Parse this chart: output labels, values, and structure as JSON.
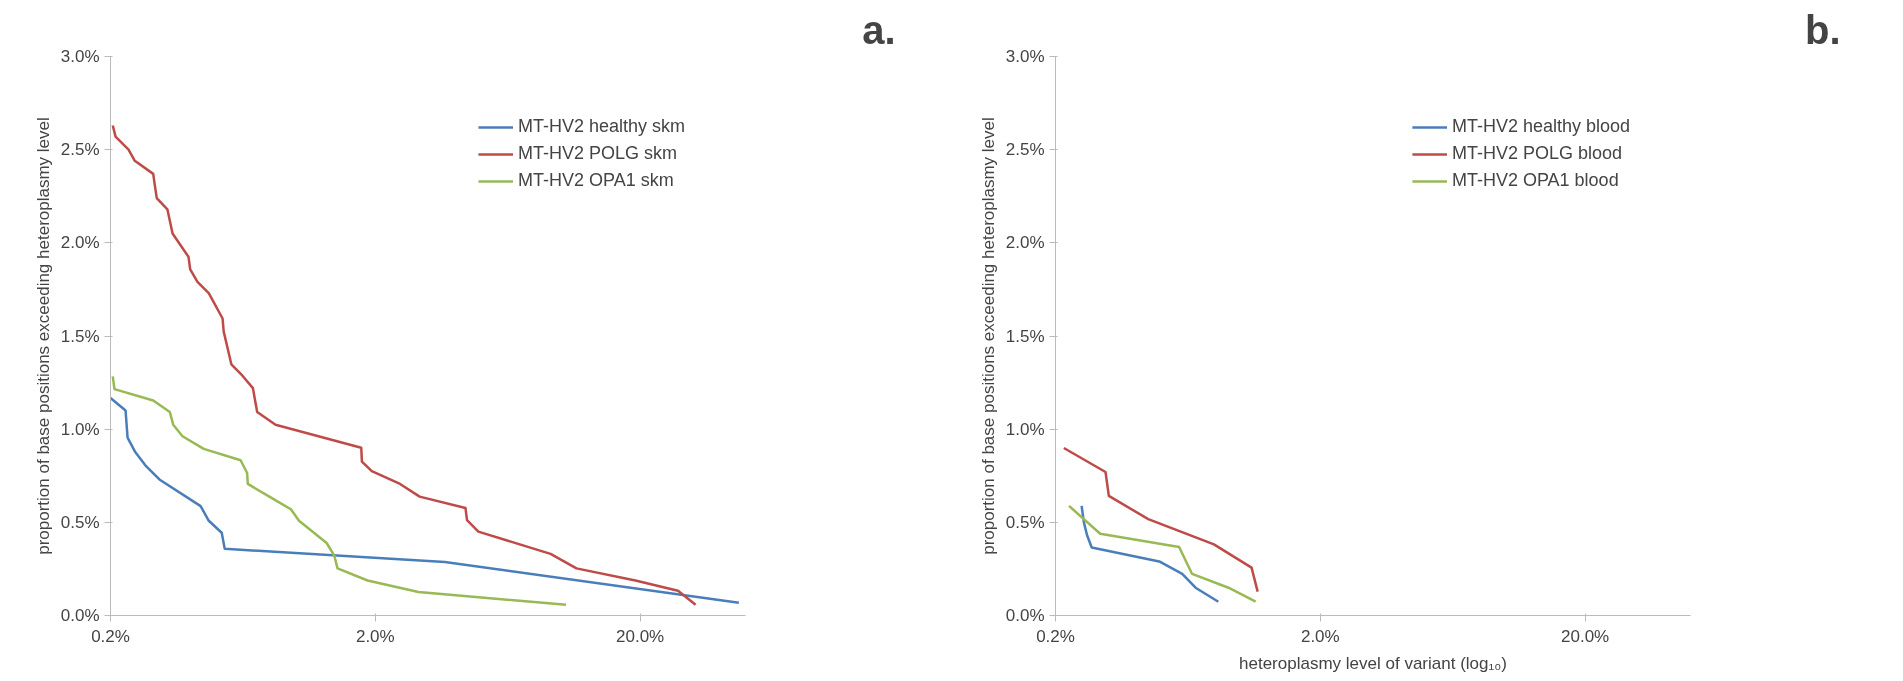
{
  "chart_data": [
    {
      "type": "line",
      "annotations": [
        "a."
      ],
      "ylabel": "proportion of base positions exceeding heteroplasmy level",
      "log": "x",
      "grid": false,
      "legend": "top right",
      "marker": "none",
      "line_style": "solid",
      "xlim": [
        0.2,
        50
      ],
      "xticks": [
        {
          "value": 0.2,
          "label": "0.2%"
        },
        {
          "value": 2,
          "label": "2.0%"
        },
        {
          "value": 20,
          "label": "20.0%"
        }
      ],
      "ylim": [
        0,
        3
      ],
      "yticks": [
        {
          "value": 0,
          "label": "0.0%"
        },
        {
          "value": 0.5,
          "label": "0.5%"
        },
        {
          "value": 1,
          "label": "1.0%"
        },
        {
          "value": 1.5,
          "label": "1.5%"
        },
        {
          "value": 2,
          "label": "2.0%"
        },
        {
          "value": 2.5,
          "label": "2.5%"
        },
        {
          "value": 3,
          "label": "3.0%"
        }
      ],
      "series": [
        {
          "name": "MT-HV2 healthy skm",
          "color": "#4a7ebb",
          "x": [
            0.2,
            0.228,
            0.232,
            0.248,
            0.273,
            0.306,
            0.438,
            0.469,
            0.526,
            0.54,
            3.66,
            47.2
          ],
          "values": [
            1.167,
            1.1,
            0.955,
            0.877,
            0.8,
            0.73,
            0.587,
            0.51,
            0.444,
            0.358,
            0.287,
            0.068
          ]
        },
        {
          "name": "MT-HV2 POLG skm",
          "color": "#be4b48",
          "x": [
            0.204,
            0.209,
            0.234,
            0.247,
            0.29,
            0.294,
            0.299,
            0.328,
            0.343,
            0.394,
            0.4,
            0.426,
            0.47,
            0.53,
            0.535,
            0.572,
            0.63,
            0.69,
            0.716,
            0.84,
            1.77,
            1.78,
            1.94,
            2.48,
            2.94,
            4.38,
            4.44,
            4.9,
            9.18,
            11.5,
            19.2,
            27.8,
            32.4
          ],
          "values": [
            2.63,
            2.57,
            2.5,
            2.44,
            2.37,
            2.31,
            2.24,
            2.18,
            2.05,
            1.925,
            1.857,
            1.79,
            1.73,
            1.594,
            1.525,
            1.348,
            1.287,
            1.22,
            1.092,
            1.024,
            0.9,
            0.826,
            0.775,
            0.706,
            0.638,
            0.577,
            0.512,
            0.45,
            0.331,
            0.253,
            0.188,
            0.133,
            0.058
          ]
        },
        {
          "name": "MT-HV2 OPA1 skm",
          "color": "#98b954",
          "x": [
            0.204,
            0.207,
            0.29,
            0.335,
            0.345,
            0.374,
            0.45,
            0.62,
            0.656,
            0.66,
            0.796,
            0.96,
            1.03,
            1.31,
            1.4,
            1.44,
            1.87,
            2.91,
            10.5
          ],
          "values": [
            1.283,
            1.215,
            1.154,
            1.092,
            1.024,
            0.962,
            0.894,
            0.833,
            0.765,
            0.706,
            0.638,
            0.57,
            0.509,
            0.389,
            0.321,
            0.253,
            0.188,
            0.126,
            0.058
          ]
        }
      ]
    },
    {
      "type": "line",
      "annotations": [
        "b."
      ],
      "xlabel": "heteroplasmy level of variant (log₁₀)",
      "ylabel": "proportion of base positions exceeding heteroplasmy level",
      "log": "x",
      "grid": false,
      "legend": "top right",
      "marker": "none",
      "line_style": "solid",
      "xlim": [
        0.2,
        50
      ],
      "xticks": [
        {
          "value": 0.2,
          "label": "0.2%"
        },
        {
          "value": 2,
          "label": "2.0%"
        },
        {
          "value": 20,
          "label": "20.0%"
        }
      ],
      "ylim": [
        0,
        3
      ],
      "yticks": [
        {
          "value": 0,
          "label": "0.0%"
        },
        {
          "value": 0.5,
          "label": "0.5%"
        },
        {
          "value": 1,
          "label": "1.0%"
        },
        {
          "value": 1.5,
          "label": "1.5%"
        },
        {
          "value": 2,
          "label": "2.0%"
        },
        {
          "value": 2.5,
          "label": "2.5%"
        },
        {
          "value": 3,
          "label": "3.0%"
        }
      ],
      "series": [
        {
          "name": "MT-HV2 healthy blood",
          "color": "#4a7ebb",
          "x": [
            0.251,
            0.256,
            0.263,
            0.274,
            0.493,
            0.602,
            0.676,
            0.824
          ],
          "values": [
            0.588,
            0.5,
            0.432,
            0.365,
            0.29,
            0.223,
            0.149,
            0.074
          ]
        },
        {
          "name": "MT-HV2 POLG blood",
          "color": "#be4b48",
          "x": [
            0.215,
            0.309,
            0.318,
            0.448,
            0.793,
            1.1,
            1.16
          ],
          "values": [
            0.899,
            0.77,
            0.642,
            0.517,
            0.382,
            0.257,
            0.128
          ]
        },
        {
          "name": "MT-HV2 OPA1 blood",
          "color": "#98b954",
          "x": [
            0.225,
            0.295,
            0.586,
            0.656,
            0.9,
            1.14
          ],
          "values": [
            0.588,
            0.439,
            0.368,
            0.223,
            0.149,
            0.074
          ]
        }
      ]
    }
  ]
}
